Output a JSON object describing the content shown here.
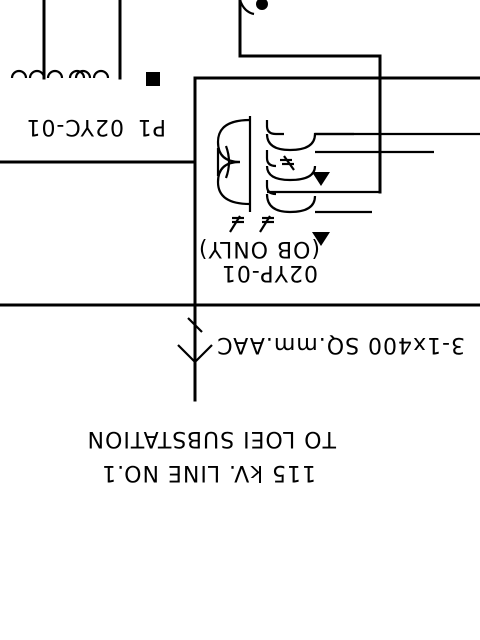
{
  "labels": {
    "breaker_id": "P1",
    "cvt_id": "02YC-01",
    "vt_note": "(OB ONLY)",
    "vt_id": "02YP-01",
    "conductor": "3-1x400 SQ.mm.AAC",
    "destination": "TO LOEI SUBSTATION",
    "line": "115 kV. LINE NO.1"
  },
  "colors": {
    "ink": "#000000",
    "background": "#ffffff"
  }
}
